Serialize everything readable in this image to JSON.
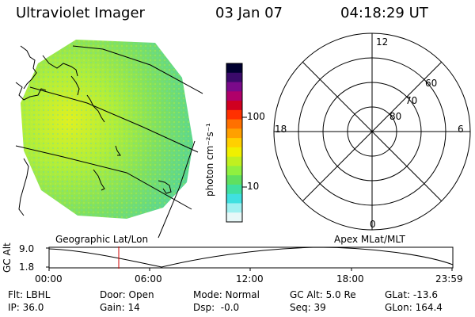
{
  "header": {
    "title": "Ultraviolet Imager",
    "date": "03 Jan 07",
    "time": "04:18:29 UT"
  },
  "image_panel": {
    "projection_label": "Geographic Lat/Lon"
  },
  "colorbar": {
    "unit_label": "photon cm⁻²s⁻¹",
    "ticks": [
      "100",
      "10"
    ],
    "colors": [
      "#000030",
      "#3a0a6a",
      "#7a0a8a",
      "#b0006a",
      "#d00020",
      "#ff3000",
      "#ff7000",
      "#ffa000",
      "#ffd000",
      "#f0f000",
      "#c0f020",
      "#90f040",
      "#60e060",
      "#40e0a0",
      "#40e0e0",
      "#a0f0f0",
      "#e8f8f8"
    ]
  },
  "polar_panel": {
    "label": "Apex MLat/MLT",
    "mlt_labels": [
      "12",
      "18",
      "6",
      "0"
    ],
    "lat_labels": [
      "60",
      "70",
      "80"
    ]
  },
  "timeline": {
    "axis_label": "GC Alt",
    "y_ticks": [
      "9.0",
      "1.8"
    ],
    "x_ticks": [
      "00:00",
      "06:00",
      "12:00",
      "18:00",
      "23:59"
    ],
    "marker_color": "#d00000"
  },
  "footer": {
    "col1": [
      "Flt: LBHL",
      "IP: 36.0"
    ],
    "col2": [
      "Door: Open",
      "Gain: 14"
    ],
    "col3": [
      "Mode: Normal",
      "Dsp:  -0.0"
    ],
    "col4": [
      "GC Alt: 5.0 Re",
      "Seq: 39"
    ],
    "col5": [
      "GLat: -13.6",
      "GLon: 164.4"
    ]
  }
}
